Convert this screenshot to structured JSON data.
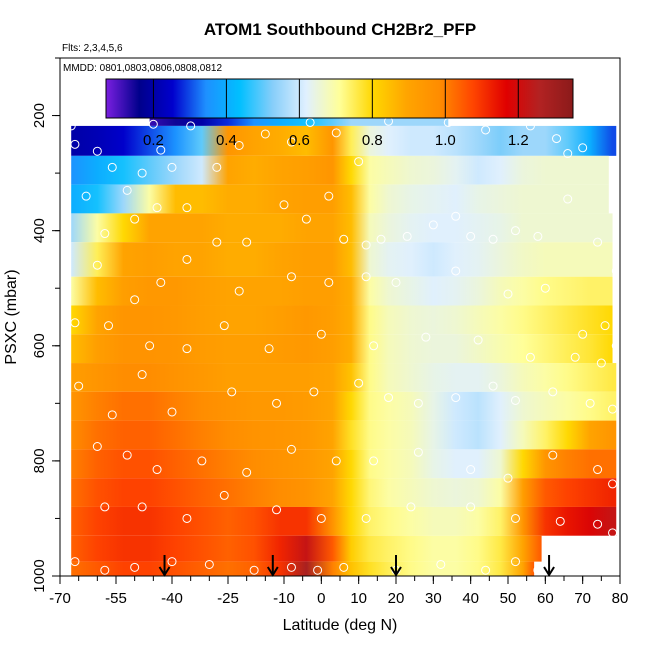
{
  "chart_data": {
    "type": "heatmap",
    "title": "ATOM1 Southbound CH2Br2_PFP",
    "flights_note": "Flts: 2,3,4,5,6",
    "dates_note": "MMDD: 0801,0803,0806,0808,0812",
    "xlabel": "Latitude (deg N)",
    "ylabel": "PSXC (mbar)",
    "xlim": [
      -70,
      80
    ],
    "ylim": [
      1000,
      100
    ],
    "x_ticks": [
      "-70",
      "-55",
      "-40",
      "-25",
      "-10",
      "0",
      "10",
      "20",
      "30",
      "40",
      "50",
      "60",
      "70",
      "80"
    ],
    "y_ticks": [
      "200",
      "400",
      "600",
      "800",
      "1000"
    ],
    "colorbar": {
      "min": 0.07,
      "max": 1.35,
      "ticks": [
        "0.2",
        "0.4",
        "0.6",
        "0.8",
        "1.0",
        "1.2"
      ],
      "colors": [
        "#7a1fe0",
        "#00008b",
        "#0000cd",
        "#1e90ff",
        "#00bfff",
        "#87cefa",
        "#e0f0ff",
        "#ffff99",
        "#ffd700",
        "#ffa500",
        "#ff8c00",
        "#ff4500",
        "#e00000",
        "#b22222",
        "#8b1a1a"
      ]
    },
    "profile_arrows_lat": [
      -42,
      -13,
      20,
      61
    ],
    "curtain": {
      "lat_nodes": [
        -67,
        -60,
        -53,
        -46,
        -39,
        -32,
        -25,
        -18,
        -11,
        -4,
        3,
        8,
        13,
        18,
        24,
        30,
        36,
        42,
        48,
        54,
        60,
        66,
        72,
        78
      ],
      "rows": [
        {
          "p": [
            180,
            218
          ],
          "lat_range": [
            -46,
            34
          ],
          "v": [
            0.3,
            0.3,
            0.1,
            0.12,
            0.15,
            0.2,
            0.28,
            0.35,
            0.4,
            0.45,
            0.5,
            0.55,
            0.55,
            0.55,
            0.55,
            0.55,
            0.55,
            0.55,
            0.55,
            0.55,
            0.55,
            0.55,
            0.55,
            0.55
          ]
        },
        {
          "p": [
            218,
            270
          ],
          "lat_range": [
            -67,
            79
          ],
          "v": [
            0.2,
            0.22,
            0.25,
            0.3,
            0.35,
            0.5,
            0.95,
            0.9,
            0.88,
            0.85,
            0.95,
            0.75,
            0.65,
            0.62,
            0.6,
            0.6,
            0.58,
            0.55,
            0.52,
            0.55,
            0.55,
            0.5,
            0.4,
            0.3
          ]
        },
        {
          "p": [
            270,
            320
          ],
          "lat_range": [
            -67,
            77
          ],
          "v": [
            0.35,
            0.4,
            0.45,
            0.5,
            0.55,
            0.6,
            0.9,
            0.88,
            0.9,
            0.92,
            0.95,
            0.8,
            0.7,
            0.68,
            0.66,
            0.65,
            0.63,
            0.6,
            0.62,
            0.65,
            0.66,
            0.66,
            0.66,
            0.66
          ]
        },
        {
          "p": [
            320,
            370
          ],
          "lat_range": [
            -67,
            77
          ],
          "v": [
            0.4,
            0.45,
            0.55,
            0.7,
            0.85,
            0.85,
            0.88,
            0.88,
            0.9,
            0.92,
            0.92,
            0.85,
            0.7,
            0.66,
            0.64,
            0.63,
            0.62,
            0.64,
            0.65,
            0.66,
            0.66,
            0.66,
            0.66,
            0.66
          ]
        },
        {
          "p": [
            370,
            420
          ],
          "lat_range": [
            -67,
            78
          ],
          "v": [
            0.55,
            0.7,
            0.8,
            0.9,
            0.9,
            0.9,
            0.88,
            0.88,
            0.88,
            0.9,
            0.9,
            0.85,
            0.68,
            0.65,
            0.63,
            0.62,
            0.62,
            0.63,
            0.64,
            0.66,
            0.66,
            0.66,
            0.66,
            0.66
          ]
        },
        {
          "p": [
            420,
            480
          ],
          "lat_range": [
            -67,
            78
          ],
          "v": [
            0.6,
            0.75,
            0.9,
            0.92,
            0.9,
            0.9,
            0.88,
            0.88,
            0.9,
            0.92,
            0.92,
            0.85,
            0.66,
            0.63,
            0.62,
            0.6,
            0.62,
            0.63,
            0.65,
            0.67,
            0.68,
            0.68,
            0.68,
            0.68
          ]
        },
        {
          "p": [
            480,
            530
          ],
          "lat_range": [
            -67,
            78
          ],
          "v": [
            0.7,
            0.85,
            0.92,
            0.94,
            0.94,
            0.92,
            0.9,
            0.9,
            0.9,
            0.92,
            0.92,
            0.88,
            0.7,
            0.66,
            0.64,
            0.62,
            0.63,
            0.65,
            0.68,
            0.7,
            0.72,
            0.73,
            0.74,
            0.74
          ]
        },
        {
          "p": [
            530,
            580
          ],
          "lat_range": [
            -67,
            78
          ],
          "v": [
            0.8,
            0.9,
            0.95,
            0.95,
            0.94,
            0.92,
            0.9,
            0.9,
            0.92,
            0.94,
            0.92,
            0.88,
            0.72,
            0.68,
            0.66,
            0.65,
            0.66,
            0.68,
            0.7,
            0.72,
            0.74,
            0.76,
            0.78,
            0.8
          ]
        },
        {
          "p": [
            580,
            630
          ],
          "lat_range": [
            -67,
            78
          ],
          "v": [
            0.85,
            0.92,
            0.96,
            0.96,
            0.95,
            0.93,
            0.92,
            0.92,
            0.93,
            0.94,
            0.92,
            0.88,
            0.72,
            0.68,
            0.66,
            0.65,
            0.65,
            0.67,
            0.69,
            0.71,
            0.73,
            0.75,
            0.77,
            0.8
          ]
        },
        {
          "p": [
            630,
            680
          ],
          "lat_range": [
            -67,
            79
          ],
          "v": [
            0.92,
            0.95,
            0.98,
            0.98,
            0.96,
            0.94,
            0.92,
            0.92,
            0.92,
            0.92,
            0.9,
            0.84,
            0.72,
            0.68,
            0.66,
            0.64,
            0.63,
            0.63,
            0.65,
            0.68,
            0.7,
            0.72,
            0.74,
            0.76
          ]
        },
        {
          "p": [
            680,
            730
          ],
          "lat_range": [
            -67,
            79
          ],
          "v": [
            0.95,
            1.0,
            1.02,
            1.02,
            1.0,
            0.98,
            0.96,
            0.94,
            0.94,
            0.93,
            0.9,
            0.8,
            0.72,
            0.7,
            0.68,
            0.64,
            0.6,
            0.58,
            0.62,
            0.66,
            0.68,
            0.7,
            0.72,
            0.74
          ]
        },
        {
          "p": [
            730,
            780
          ],
          "lat_range": [
            -67,
            79
          ],
          "v": [
            0.98,
            1.02,
            1.04,
            1.04,
            1.02,
            1.0,
            0.98,
            0.96,
            0.95,
            0.94,
            0.9,
            0.78,
            0.72,
            0.7,
            0.68,
            0.64,
            0.6,
            0.58,
            0.62,
            0.68,
            0.74,
            0.8,
            0.9,
            0.95
          ]
        },
        {
          "p": [
            780,
            830
          ],
          "lat_range": [
            -67,
            79
          ],
          "v": [
            1.0,
            1.04,
            1.06,
            1.06,
            1.04,
            1.02,
            1.0,
            0.98,
            0.96,
            0.94,
            0.9,
            0.8,
            0.72,
            0.7,
            0.68,
            0.64,
            0.62,
            0.62,
            0.66,
            0.8,
            0.95,
            1.0,
            1.02,
            1.02
          ]
        },
        {
          "p": [
            830,
            880
          ],
          "lat_range": [
            -67,
            79
          ],
          "v": [
            1.02,
            1.06,
            1.08,
            1.08,
            1.06,
            1.04,
            1.02,
            1.0,
            0.98,
            0.96,
            0.9,
            0.8,
            0.73,
            0.7,
            0.68,
            0.66,
            0.65,
            0.66,
            0.7,
            0.92,
            1.05,
            1.08,
            1.1,
            1.12
          ]
        },
        {
          "p": [
            880,
            930
          ],
          "lat_range": [
            -67,
            79
          ],
          "v": [
            1.04,
            1.08,
            1.1,
            1.1,
            1.08,
            1.06,
            1.04,
            1.06,
            1.1,
            1.1,
            0.96,
            0.8,
            0.74,
            0.72,
            0.7,
            0.68,
            0.68,
            0.7,
            0.74,
            0.95,
            1.1,
            1.14,
            1.18,
            1.22
          ]
        },
        {
          "p": [
            930,
            975
          ],
          "lat_range": [
            -67,
            59
          ],
          "v": [
            1.04,
            1.08,
            1.1,
            1.1,
            1.08,
            1.06,
            1.04,
            1.06,
            1.12,
            1.22,
            1.05,
            0.82,
            0.76,
            0.74,
            0.72,
            0.7,
            0.7,
            0.72,
            0.76,
            0.9,
            1.05,
            1.05,
            1.05,
            1.05
          ]
        },
        {
          "p": [
            975,
            1000
          ],
          "lat_range": [
            -67,
            57
          ],
          "v": [
            1.02,
            1.05,
            1.08,
            1.08,
            1.06,
            1.04,
            1.02,
            1.04,
            1.1,
            1.28,
            1.0,
            0.84,
            0.78,
            0.75,
            0.72,
            0.7,
            0.7,
            0.72,
            0.76,
            0.9,
            1.05,
            1.05,
            1.05,
            1.05
          ]
        }
      ]
    },
    "samples": [
      [
        -67,
        218
      ],
      [
        -66,
        250
      ],
      [
        -60,
        262
      ],
      [
        -56,
        290
      ],
      [
        -52,
        330
      ],
      [
        -48,
        300
      ],
      [
        -45,
        215
      ],
      [
        -43,
        260
      ],
      [
        -40,
        290
      ],
      [
        -35,
        218
      ],
      [
        -28,
        290
      ],
      [
        -22,
        252
      ],
      [
        -15,
        232
      ],
      [
        -8,
        246
      ],
      [
        -3,
        212
      ],
      [
        4,
        230
      ],
      [
        10,
        280
      ],
      [
        18,
        210
      ],
      [
        30,
        178
      ],
      [
        34,
        212
      ],
      [
        44,
        225
      ],
      [
        56,
        218
      ],
      [
        63,
        240
      ],
      [
        66,
        266
      ],
      [
        70,
        256
      ],
      [
        -63,
        340
      ],
      [
        -58,
        405
      ],
      [
        -50,
        380
      ],
      [
        -44,
        360
      ],
      [
        -36,
        360
      ],
      [
        -28,
        420
      ],
      [
        -20,
        420
      ],
      [
        -10,
        355
      ],
      [
        -4,
        380
      ],
      [
        2,
        340
      ],
      [
        6,
        415
      ],
      [
        12,
        425
      ],
      [
        16,
        415
      ],
      [
        23,
        410
      ],
      [
        30,
        390
      ],
      [
        36,
        375
      ],
      [
        40,
        410
      ],
      [
        46,
        415
      ],
      [
        52,
        400
      ],
      [
        58,
        410
      ],
      [
        66,
        345
      ],
      [
        74,
        420
      ],
      [
        79,
        470
      ],
      [
        -60,
        460
      ],
      [
        -50,
        520
      ],
      [
        -43,
        490
      ],
      [
        -36,
        450
      ],
      [
        -22,
        505
      ],
      [
        -8,
        480
      ],
      [
        2,
        490
      ],
      [
        12,
        480
      ],
      [
        20,
        490
      ],
      [
        36,
        470
      ],
      [
        50,
        510
      ],
      [
        60,
        500
      ],
      [
        70,
        580
      ],
      [
        76,
        565
      ],
      [
        79,
        600
      ],
      [
        -66,
        560
      ],
      [
        -57,
        565
      ],
      [
        -46,
        600
      ],
      [
        -36,
        605
      ],
      [
        -26,
        565
      ],
      [
        -14,
        605
      ],
      [
        0,
        580
      ],
      [
        14,
        600
      ],
      [
        28,
        585
      ],
      [
        42,
        590
      ],
      [
        56,
        620
      ],
      [
        68,
        620
      ],
      [
        75,
        630
      ],
      [
        -65,
        670
      ],
      [
        -56,
        720
      ],
      [
        -48,
        650
      ],
      [
        -40,
        715
      ],
      [
        -24,
        680
      ],
      [
        -12,
        700
      ],
      [
        -2,
        680
      ],
      [
        10,
        665
      ],
      [
        18,
        690
      ],
      [
        26,
        700
      ],
      [
        36,
        690
      ],
      [
        46,
        670
      ],
      [
        52,
        695
      ],
      [
        62,
        680
      ],
      [
        72,
        700
      ],
      [
        78,
        710
      ],
      [
        -60,
        775
      ],
      [
        -52,
        790
      ],
      [
        -44,
        815
      ],
      [
        -32,
        800
      ],
      [
        -20,
        820
      ],
      [
        -8,
        780
      ],
      [
        4,
        800
      ],
      [
        14,
        800
      ],
      [
        26,
        785
      ],
      [
        40,
        815
      ],
      [
        50,
        830
      ],
      [
        62,
        790
      ],
      [
        74,
        815
      ],
      [
        78,
        840
      ],
      [
        -58,
        880
      ],
      [
        -48,
        880
      ],
      [
        -36,
        900
      ],
      [
        -26,
        860
      ],
      [
        -12,
        885
      ],
      [
        0,
        900
      ],
      [
        12,
        900
      ],
      [
        24,
        880
      ],
      [
        40,
        880
      ],
      [
        52,
        900
      ],
      [
        64,
        905
      ],
      [
        74,
        910
      ],
      [
        78,
        925
      ],
      [
        -66,
        975
      ],
      [
        -58,
        990
      ],
      [
        -50,
        985
      ],
      [
        -40,
        975
      ],
      [
        -30,
        980
      ],
      [
        -18,
        990
      ],
      [
        -8,
        985
      ],
      [
        -1,
        990
      ],
      [
        6,
        985
      ],
      [
        20,
        990
      ],
      [
        32,
        980
      ],
      [
        44,
        990
      ],
      [
        52,
        975
      ],
      [
        58,
        990
      ]
    ]
  }
}
